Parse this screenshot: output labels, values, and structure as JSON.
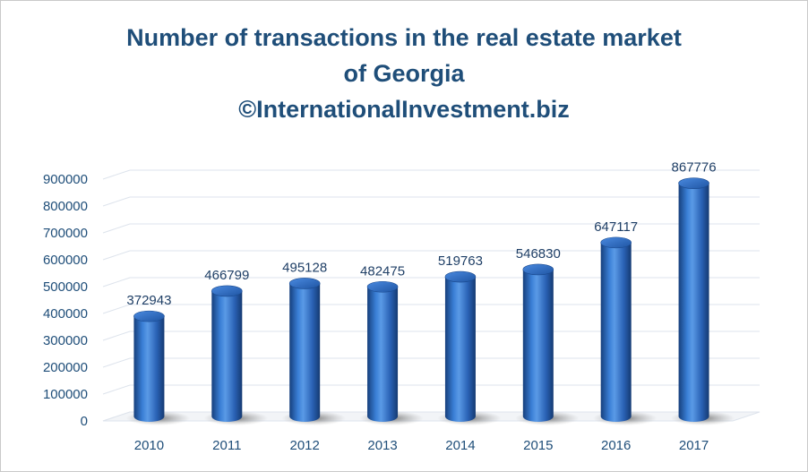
{
  "chart_data": {
    "type": "bar",
    "title": "Number of transactions in the real estate market of Georgia",
    "title_lines": [
      "Number of transactions in the real estate market",
      "of Georgia",
      "©InternationalInvestment.biz"
    ],
    "categories": [
      "2010",
      "2011",
      "2012",
      "2013",
      "2014",
      "2015",
      "2016",
      "2017"
    ],
    "values": [
      372943,
      466799,
      495128,
      482475,
      519763,
      546830,
      647117,
      867776
    ],
    "ylim": [
      0,
      900000
    ],
    "yticks": [
      "0",
      "100000",
      "200000",
      "300000",
      "400000",
      "500000",
      "600000",
      "700000",
      "800000",
      "900000"
    ],
    "grid": true,
    "legend": "none",
    "bar_color": "#2e6fc7"
  }
}
